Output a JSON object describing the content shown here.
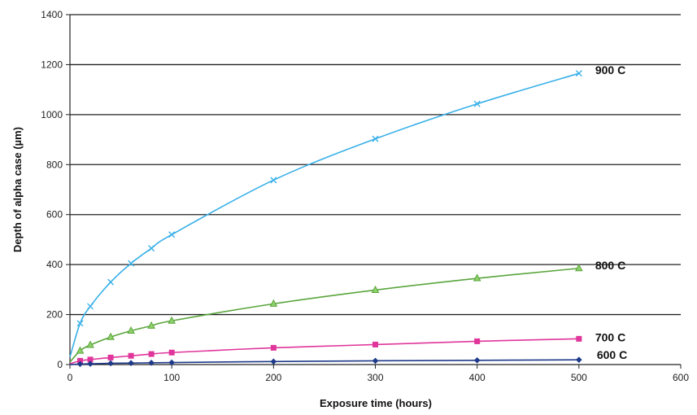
{
  "chart_data": {
    "type": "line",
    "title": "",
    "xlabel": "Exposure time (hours)",
    "ylabel": "Depth of alpha case (µm)",
    "xlim": [
      0,
      600
    ],
    "ylim": [
      0,
      1400
    ],
    "xticks": [
      "0",
      "100",
      "200",
      "300",
      "400",
      "500",
      "600"
    ],
    "yticks": [
      "0",
      "200",
      "400",
      "600",
      "800",
      "1000",
      "1200",
      "1400"
    ],
    "grid": "horizontal",
    "legend": "labels at line ends",
    "series": [
      {
        "name": "900 C",
        "color": "#39b0e8",
        "marker": "x",
        "x": [
          0,
          10,
          20,
          40,
          60,
          80,
          100,
          200,
          300,
          400,
          500
        ],
        "values": [
          30,
          165,
          233,
          330,
          405,
          465,
          520,
          738,
          903,
          1043,
          1165
        ]
      },
      {
        "name": "800 C",
        "color": "#5aa53c",
        "marker": "triangle",
        "x": [
          0,
          10,
          20,
          40,
          60,
          80,
          100,
          200,
          300,
          400,
          500
        ],
        "values": [
          10,
          55,
          78,
          110,
          135,
          155,
          175,
          243,
          298,
          345,
          385
        ]
      },
      {
        "name": "700 C",
        "color": "#e0359b",
        "marker": "square",
        "x": [
          0,
          10,
          20,
          40,
          60,
          80,
          100,
          200,
          300,
          400,
          500
        ],
        "values": [
          3,
          15,
          20,
          28,
          35,
          42,
          48,
          67,
          80,
          93,
          103
        ]
      },
      {
        "name": "600 C",
        "color": "#1e3a8a",
        "marker": "diamond",
        "x": [
          0,
          10,
          20,
          40,
          60,
          80,
          100,
          200,
          300,
          400,
          500
        ],
        "values": [
          0,
          2,
          3,
          5,
          6,
          7,
          8,
          12,
          15,
          17,
          19
        ]
      }
    ]
  }
}
